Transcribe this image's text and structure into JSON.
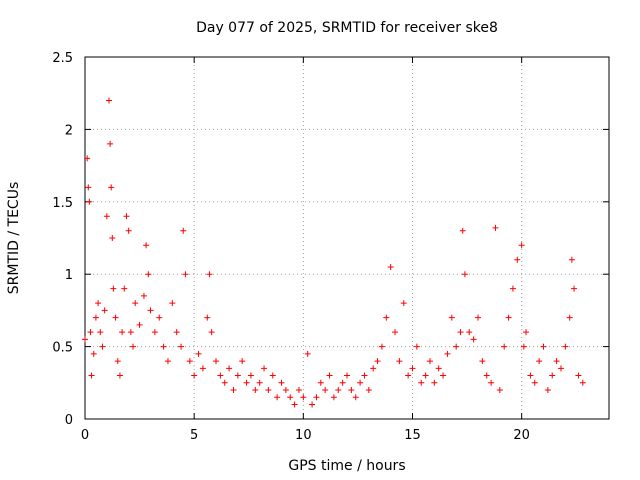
{
  "chart_data": {
    "type": "scatter",
    "title": "Day 077 of 2025, SRMTID for receiver ske8",
    "xlabel": "GPS time / hours",
    "ylabel": "SRMTID / TECUs",
    "xlim": [
      0,
      24
    ],
    "ylim": [
      0,
      2.5
    ],
    "xticks": [
      0,
      5,
      10,
      15,
      20
    ],
    "yticks": [
      0,
      0.5,
      1,
      1.5,
      2,
      2.5
    ],
    "xtick_labels": [
      "0",
      "5",
      "10",
      "15",
      "20"
    ],
    "ytick_labels": [
      "0",
      "0.5",
      "1",
      "1.5",
      "2",
      "2.5"
    ],
    "grid": true,
    "marker": "+",
    "color": "#ff0000",
    "series": [
      {
        "name": "SRMTID",
        "x": [
          0.0,
          0.1,
          0.15,
          0.2,
          0.25,
          0.3,
          0.4,
          0.5,
          0.6,
          0.7,
          0.8,
          0.9,
          1.0,
          1.1,
          1.15,
          1.2,
          1.25,
          1.3,
          1.4,
          1.5,
          1.6,
          1.7,
          1.8,
          1.9,
          2.0,
          2.1,
          2.2,
          2.3,
          2.5,
          2.7,
          2.8,
          2.9,
          3.0,
          3.2,
          3.4,
          3.6,
          3.8,
          4.0,
          4.2,
          4.4,
          4.5,
          4.6,
          4.8,
          5.0,
          5.2,
          5.4,
          5.6,
          5.7,
          5.8,
          6.0,
          6.2,
          6.4,
          6.6,
          6.8,
          7.0,
          7.2,
          7.4,
          7.6,
          7.8,
          8.0,
          8.2,
          8.4,
          8.6,
          8.8,
          9.0,
          9.2,
          9.4,
          9.6,
          9.8,
          10.0,
          10.2,
          10.4,
          10.6,
          10.8,
          11.0,
          11.2,
          11.4,
          11.6,
          11.8,
          12.0,
          12.2,
          12.4,
          12.6,
          12.8,
          13.0,
          13.2,
          13.4,
          13.6,
          13.8,
          14.0,
          14.2,
          14.4,
          14.6,
          14.8,
          15.0,
          15.2,
          15.4,
          15.6,
          15.8,
          16.0,
          16.2,
          16.4,
          16.6,
          16.8,
          17.0,
          17.2,
          17.3,
          17.4,
          17.6,
          17.8,
          18.0,
          18.2,
          18.4,
          18.6,
          18.8,
          19.0,
          19.2,
          19.4,
          19.6,
          19.8,
          20.0,
          20.1,
          20.2,
          20.4,
          20.6,
          20.8,
          21.0,
          21.2,
          21.4,
          21.6,
          21.8,
          22.0,
          22.2,
          22.3,
          22.4,
          22.6,
          22.8
        ],
        "y": [
          0.55,
          1.8,
          1.6,
          1.5,
          0.6,
          0.3,
          0.45,
          0.7,
          0.8,
          0.6,
          0.5,
          0.75,
          1.4,
          2.2,
          1.9,
          1.6,
          1.25,
          0.9,
          0.7,
          0.4,
          0.3,
          0.6,
          0.9,
          1.4,
          1.3,
          0.6,
          0.5,
          0.8,
          0.65,
          0.85,
          1.2,
          1.0,
          0.75,
          0.6,
          0.7,
          0.5,
          0.4,
          0.8,
          0.6,
          0.5,
          1.3,
          1.0,
          0.4,
          0.3,
          0.45,
          0.35,
          0.7,
          1.0,
          0.6,
          0.4,
          0.3,
          0.25,
          0.35,
          0.2,
          0.3,
          0.4,
          0.25,
          0.3,
          0.2,
          0.25,
          0.35,
          0.2,
          0.3,
          0.15,
          0.25,
          0.2,
          0.15,
          0.1,
          0.2,
          0.15,
          0.45,
          0.1,
          0.15,
          0.25,
          0.2,
          0.3,
          0.15,
          0.2,
          0.25,
          0.3,
          0.2,
          0.15,
          0.25,
          0.3,
          0.2,
          0.35,
          0.4,
          0.5,
          0.7,
          1.05,
          0.6,
          0.4,
          0.8,
          0.3,
          0.35,
          0.5,
          0.25,
          0.3,
          0.4,
          0.25,
          0.35,
          0.3,
          0.45,
          0.7,
          0.5,
          0.6,
          1.3,
          1.0,
          0.6,
          0.55,
          0.7,
          0.4,
          0.3,
          0.25,
          1.32,
          0.2,
          0.5,
          0.7,
          0.9,
          1.1,
          1.2,
          0.5,
          0.6,
          0.3,
          0.25,
          0.4,
          0.5,
          0.2,
          0.3,
          0.4,
          0.35,
          0.5,
          0.7,
          1.1,
          0.9,
          0.3,
          0.25
        ]
      }
    ]
  }
}
